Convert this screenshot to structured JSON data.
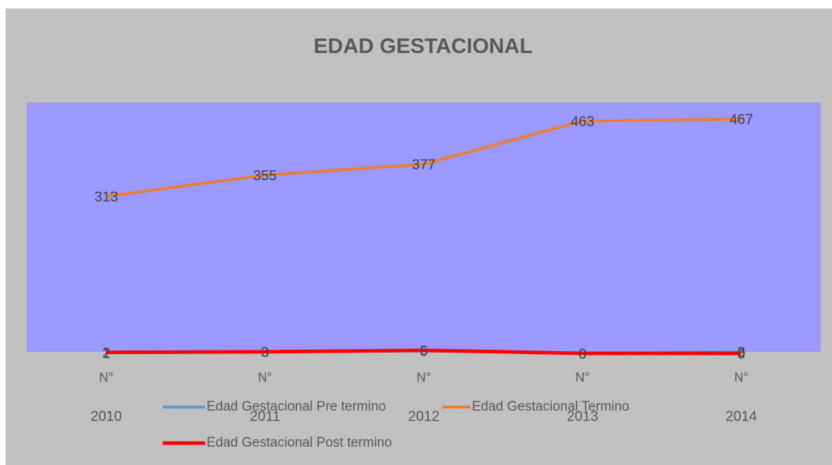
{
  "chart_data": {
    "type": "line",
    "title": "EDAD GESTACIONAL",
    "categories": [
      "2010",
      "2011",
      "2012",
      "2013",
      "2014"
    ],
    "category_prefixes": [
      "N°",
      "N°",
      "N°",
      "N°",
      "N°"
    ],
    "ylim": [
      0,
      500
    ],
    "plot_background": "#9999ff",
    "series": [
      {
        "name": "Edad Gestacional Pre termino",
        "color": "#5b9bd5",
        "values": [
          1,
          3,
          5,
          0,
          3
        ]
      },
      {
        "name": "Edad Gestacional Termino",
        "color": "#ed7d31",
        "values": [
          313,
          355,
          377,
          463,
          467
        ]
      },
      {
        "name": "Edad Gestacional Post termino",
        "color": "#ff0000",
        "values": [
          2,
          3,
          6,
          0,
          0
        ]
      }
    ]
  }
}
